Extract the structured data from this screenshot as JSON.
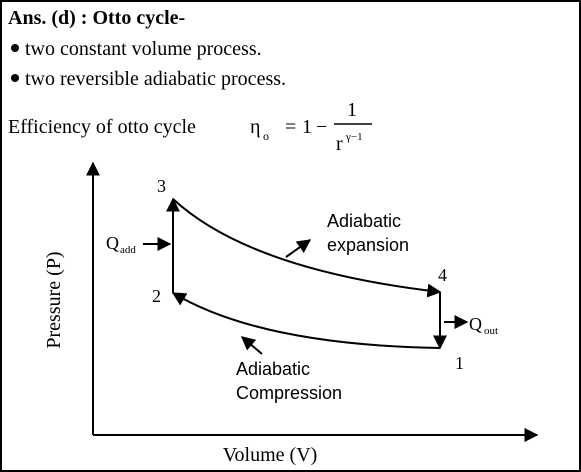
{
  "header": {
    "title": "Ans. (d) : Otto cycle-"
  },
  "bullets": [
    "two constant volume process.",
    "two reversible adiabatic process."
  ],
  "efficiency": {
    "label": "Efficiency of otto cycle",
    "formula": {
      "symbol": "η",
      "subscript": "o",
      "equals": "=",
      "one": "1",
      "minus": "−",
      "numerator": "1",
      "base": "r",
      "exponent": "γ−1"
    }
  },
  "diagram": {
    "y_axis": "Pressure (P)",
    "x_axis": "Volume (V)",
    "points": [
      "1",
      "2",
      "3",
      "4"
    ],
    "heat_in": {
      "symbol": "Q",
      "subscript": "add"
    },
    "heat_out": {
      "symbol": "Q",
      "subscript": "out"
    },
    "expansion": [
      "Adiabatic",
      "expansion"
    ],
    "compression": [
      "Adiabatic",
      "Compression"
    ]
  }
}
